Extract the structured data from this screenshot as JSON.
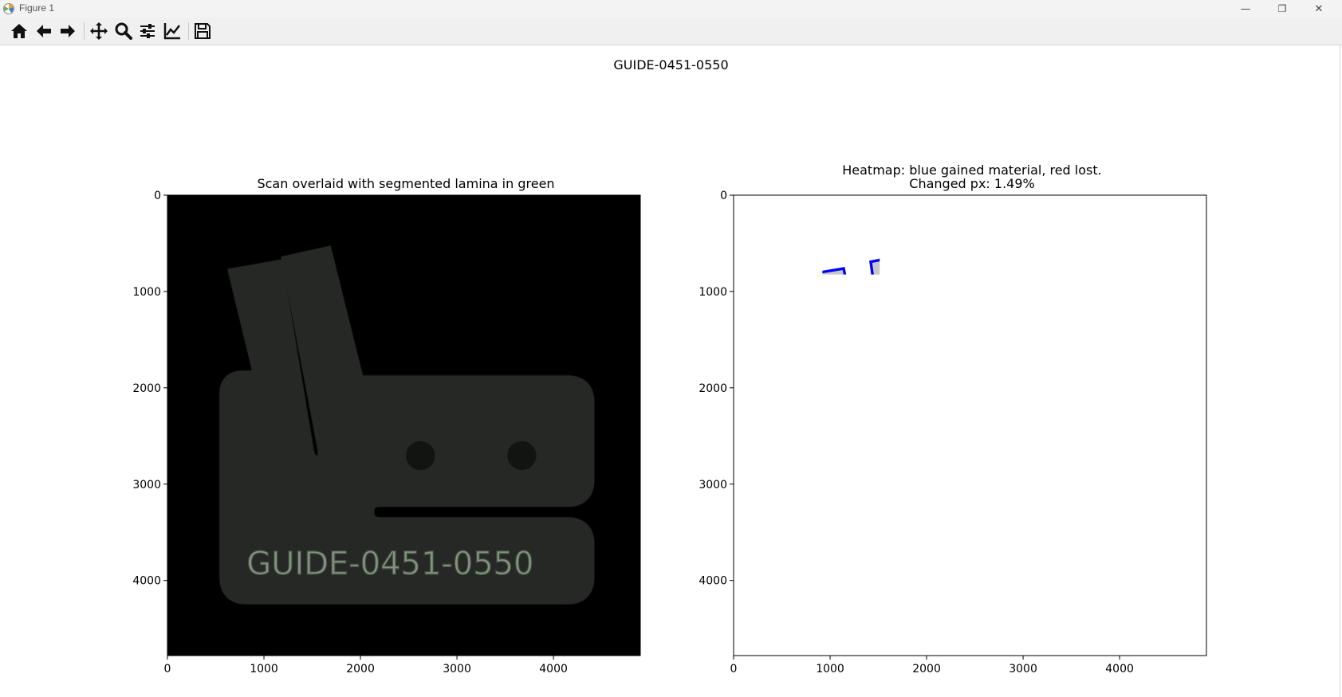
{
  "window": {
    "title": "Figure 1",
    "controls": {
      "minimize": "—",
      "restore": "❐",
      "close": "✕"
    }
  },
  "toolbar": {
    "buttons": [
      "home-icon",
      "back-icon",
      "forward-icon",
      "pan-icon",
      "zoom-icon",
      "configure-subplots-icon",
      "edit-axis-icon",
      "save-icon"
    ]
  },
  "figure": {
    "suptitle": "GUIDE-0451-0550"
  },
  "chart_data": [
    {
      "type": "image",
      "title": "Scan overlaid with segmented lamina in green",
      "xlim": [
        0,
        4900
      ],
      "ylim": [
        4780,
        0
      ],
      "xticks": [
        0,
        1000,
        2000,
        3000,
        4000
      ],
      "yticks": [
        0,
        1000,
        2000,
        3000,
        4000
      ],
      "embossed_text": "GUIDE-0451-0550",
      "colors": {
        "background": "#000000",
        "part": "#8ea88a"
      }
    },
    {
      "type": "image",
      "title": "Heatmap: blue gained material, red lost.",
      "subtitle": "Changed px: 1.49%",
      "xlim": [
        0,
        4900
      ],
      "ylim": [
        4780,
        0
      ],
      "xticks": [
        0,
        1000,
        2000,
        3000,
        4000
      ],
      "yticks": [
        0,
        1000,
        2000,
        3000,
        4000
      ],
      "colors": {
        "unchanged": "#c8c8c8",
        "gained": "#0000ff",
        "lost": "#ff0000"
      }
    }
  ]
}
